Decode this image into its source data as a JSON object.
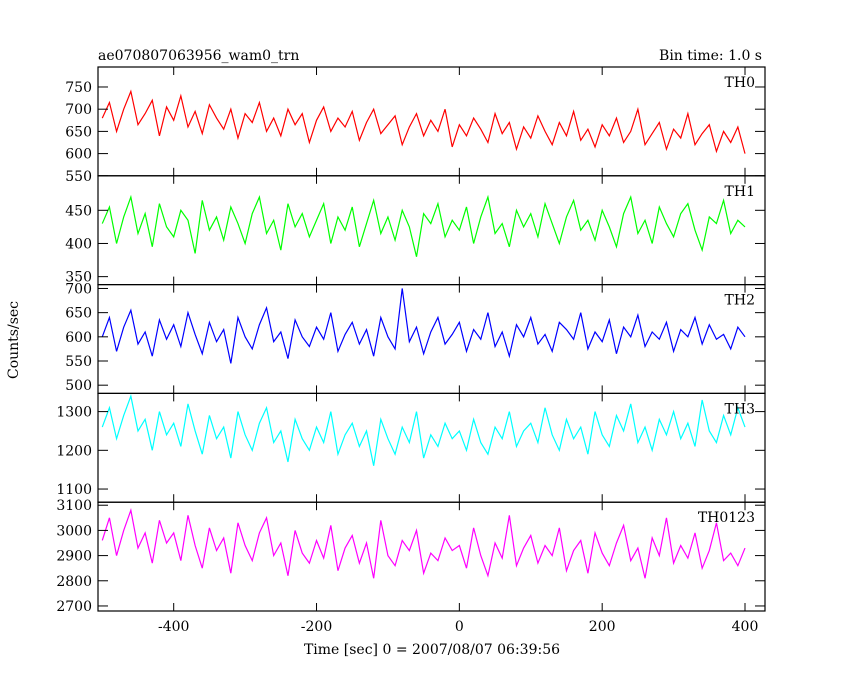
{
  "chart_data": {
    "type": "line",
    "title": "ae070807063956_wam0_trn",
    "subtitle": "Bin time: 1.0 s",
    "xlabel": "Time [sec] 0 = 2007/08/07 06:39:56",
    "ylabel": "Counts/sec",
    "xlim": [
      -506,
      428
    ],
    "xticks": [
      -400,
      -200,
      0,
      200,
      400
    ],
    "x": [
      -500,
      -490,
      -480,
      -470,
      -460,
      -450,
      -440,
      -430,
      -420,
      -410,
      -400,
      -390,
      -380,
      -370,
      -360,
      -350,
      -340,
      -330,
      -320,
      -310,
      -300,
      -290,
      -280,
      -270,
      -260,
      -250,
      -240,
      -230,
      -220,
      -210,
      -200,
      -190,
      -180,
      -170,
      -160,
      -150,
      -140,
      -130,
      -120,
      -110,
      -100,
      -90,
      -80,
      -70,
      -60,
      -50,
      -40,
      -30,
      -20,
      -10,
      0,
      10,
      20,
      30,
      40,
      50,
      60,
      70,
      80,
      90,
      100,
      110,
      120,
      130,
      140,
      150,
      160,
      170,
      180,
      190,
      200,
      210,
      220,
      230,
      240,
      250,
      260,
      270,
      280,
      290,
      300,
      310,
      320,
      330,
      340,
      350,
      360,
      370,
      380,
      390,
      400
    ],
    "panels": [
      {
        "name": "TH0",
        "color": "#ff0000",
        "ylim": [
          550,
          795
        ],
        "yticks": [
          550,
          600,
          650,
          700,
          750
        ],
        "values": [
          680,
          715,
          650,
          700,
          740,
          665,
          690,
          720,
          640,
          705,
          675,
          730,
          660,
          695,
          645,
          710,
          680,
          655,
          700,
          635,
          690,
          670,
          715,
          650,
          680,
          640,
          700,
          665,
          690,
          625,
          675,
          705,
          650,
          680,
          660,
          695,
          630,
          670,
          700,
          645,
          665,
          685,
          620,
          660,
          690,
          640,
          675,
          650,
          700,
          615,
          665,
          640,
          680,
          655,
          625,
          690,
          645,
          670,
          610,
          660,
          635,
          685,
          650,
          620,
          670,
          640,
          695,
          630,
          655,
          615,
          665,
          640,
          680,
          625,
          650,
          700,
          620,
          645,
          670,
          610,
          655,
          635,
          690,
          620,
          645,
          665,
          605,
          650,
          625,
          660,
          600
        ]
      },
      {
        "name": "TH1",
        "color": "#00ff00",
        "ylim": [
          338,
          502
        ],
        "yticks": [
          350,
          400,
          450
        ],
        "values": [
          430,
          455,
          400,
          440,
          470,
          415,
          445,
          395,
          460,
          425,
          410,
          450,
          435,
          385,
          465,
          420,
          440,
          405,
          455,
          430,
          400,
          445,
          470,
          415,
          435,
          390,
          460,
          425,
          445,
          410,
          435,
          460,
          400,
          440,
          420,
          455,
          395,
          430,
          465,
          415,
          440,
          405,
          450,
          425,
          380,
          445,
          430,
          460,
          410,
          435,
          420,
          455,
          400,
          440,
          470,
          415,
          430,
          395,
          450,
          425,
          445,
          410,
          460,
          430,
          400,
          440,
          465,
          420,
          435,
          405,
          450,
          425,
          395,
          445,
          470,
          415,
          435,
          400,
          455,
          430,
          410,
          445,
          460,
          420,
          390,
          440,
          430,
          465,
          415,
          435,
          425
        ]
      },
      {
        "name": "TH2",
        "color": "#0000ff",
        "ylim": [
          483,
          708
        ],
        "yticks": [
          500,
          550,
          600,
          650,
          700
        ],
        "values": [
          600,
          640,
          570,
          620,
          655,
          585,
          610,
          560,
          635,
          595,
          625,
          580,
          650,
          605,
          565,
          630,
          590,
          615,
          545,
          640,
          600,
          575,
          625,
          660,
          590,
          610,
          555,
          635,
          600,
          580,
          620,
          595,
          650,
          570,
          605,
          630,
          585,
          615,
          560,
          640,
          600,
          575,
          700,
          590,
          620,
          565,
          610,
          640,
          585,
          605,
          630,
          570,
          615,
          595,
          650,
          580,
          610,
          560,
          625,
          600,
          640,
          585,
          605,
          570,
          630,
          615,
          595,
          650,
          575,
          610,
          590,
          635,
          565,
          620,
          600,
          645,
          580,
          610,
          595,
          630,
          570,
          615,
          600,
          640,
          585,
          625,
          595,
          605,
          575,
          620,
          600
        ]
      },
      {
        "name": "TH3",
        "color": "#00ffff",
        "ylim": [
          1066,
          1347
        ],
        "yticks": [
          1100,
          1200,
          1300
        ],
        "values": [
          1260,
          1310,
          1230,
          1290,
          1340,
          1250,
          1280,
          1200,
          1300,
          1240,
          1270,
          1210,
          1320,
          1250,
          1190,
          1290,
          1230,
          1260,
          1180,
          1300,
          1240,
          1200,
          1270,
          1310,
          1220,
          1250,
          1170,
          1280,
          1230,
          1200,
          1260,
          1220,
          1300,
          1190,
          1240,
          1270,
          1210,
          1250,
          1160,
          1280,
          1230,
          1190,
          1260,
          1220,
          1300,
          1180,
          1240,
          1210,
          1270,
          1230,
          1250,
          1200,
          1280,
          1220,
          1190,
          1260,
          1230,
          1300,
          1210,
          1250,
          1270,
          1220,
          1310,
          1240,
          1200,
          1280,
          1230,
          1260,
          1190,
          1300,
          1240,
          1210,
          1290,
          1250,
          1320,
          1220,
          1260,
          1200,
          1280,
          1240,
          1300,
          1230,
          1270,
          1210,
          1330,
          1250,
          1220,
          1290,
          1240,
          1310,
          1260
        ]
      },
      {
        "name": "TH0123",
        "color": "#ff00ff",
        "ylim": [
          2680,
          3112
        ],
        "yticks": [
          2700,
          2800,
          2900,
          3000,
          3100
        ],
        "values": [
          2960,
          3050,
          2900,
          3000,
          3080,
          2930,
          2990,
          2870,
          3040,
          2950,
          2990,
          2880,
          3060,
          2940,
          2850,
          3010,
          2920,
          2970,
          2830,
          3030,
          2940,
          2880,
          2990,
          3050,
          2900,
          2950,
          2820,
          3000,
          2910,
          2870,
          2960,
          2890,
          3020,
          2840,
          2930,
          2980,
          2870,
          2950,
          2810,
          3040,
          2900,
          2860,
          2960,
          2920,
          3000,
          2830,
          2910,
          2880,
          2970,
          2920,
          2940,
          2850,
          3010,
          2900,
          2820,
          2950,
          2890,
          3060,
          2860,
          2930,
          2980,
          2870,
          2940,
          2900,
          3010,
          2840,
          2920,
          2960,
          2830,
          2990,
          2910,
          2860,
          2950,
          3020,
          2880,
          2930,
          2810,
          2970,
          2900,
          3050,
          2870,
          2940,
          2890,
          2990,
          2850,
          2920,
          3030,
          2880,
          2910,
          2860,
          2930
        ]
      }
    ]
  }
}
